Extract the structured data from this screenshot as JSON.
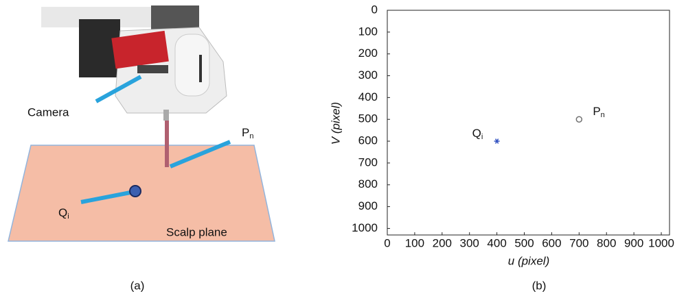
{
  "panel_a": {
    "labels": {
      "camera": "Camera",
      "scalp": "Scalp plane",
      "p": {
        "text": "P",
        "sub": "n"
      },
      "q": {
        "text": "Q",
        "sub": "i"
      }
    },
    "caption": "(a)"
  },
  "chart_data": {
    "type": "scatter",
    "xlabel": "u (pixel)",
    "ylabel": "V (pixel)",
    "xlim": [
      0,
      1030
    ],
    "ylim": [
      0,
      1030
    ],
    "y_inverted": true,
    "xticks": [
      0,
      100,
      200,
      300,
      400,
      500,
      600,
      700,
      800,
      900,
      1000
    ],
    "yticks": [
      0,
      100,
      200,
      300,
      400,
      500,
      600,
      700,
      800,
      900,
      1000
    ],
    "points": [
      {
        "x": 400,
        "y": 600,
        "marker": "star",
        "color": "#3050c0",
        "label": {
          "text": "Q",
          "sub": "i"
        }
      },
      {
        "x": 700,
        "y": 500,
        "marker": "circle",
        "color": "#707070",
        "label": {
          "text": "P",
          "sub": "n"
        }
      }
    ]
  },
  "caption_b": "(b)"
}
